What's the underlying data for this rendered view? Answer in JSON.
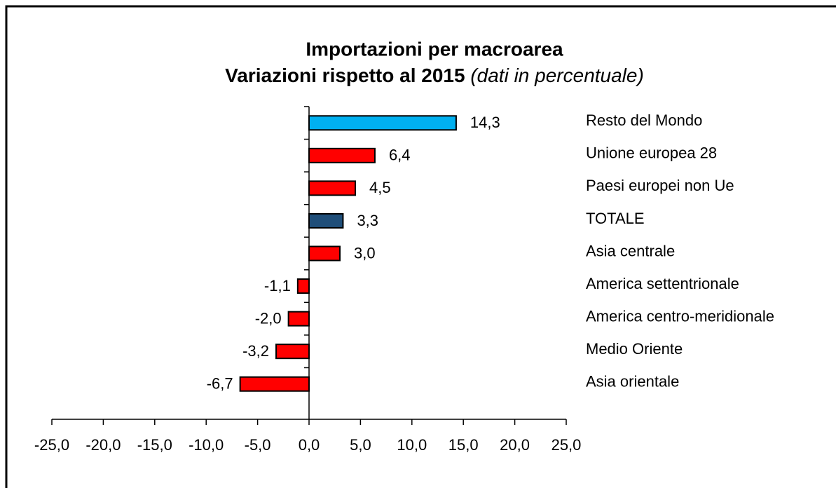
{
  "chart_data": {
    "type": "barh",
    "title": "Importazioni per macroarea",
    "subtitle": "Variazioni rispetto al 2015",
    "subtitle_note": "(dati in percentuale)",
    "categories": [
      "Resto del Mondo",
      "Unione europea 28",
      "Paesi europei non Ue",
      "TOTALE",
      "Asia centrale",
      "America settentrionale",
      "America centro-meridionale",
      "Medio Oriente",
      "Asia orientale"
    ],
    "values": [
      14.3,
      6.4,
      4.5,
      3.3,
      3.0,
      -1.1,
      -2.0,
      -3.2,
      -6.7
    ],
    "value_labels": [
      "14,3",
      "6,4",
      "4,5",
      "3,3",
      "3,0",
      "-1,1",
      "-2,0",
      "-3,2",
      "-6,7"
    ],
    "colors": [
      "#00b0f0",
      "#ff0000",
      "#ff0000",
      "#1f4e79",
      "#ff0000",
      "#ff0000",
      "#ff0000",
      "#ff0000",
      "#ff0000"
    ],
    "xlim": [
      -25,
      25
    ],
    "xticks": [
      {
        "value": -25,
        "label": "-25,0"
      },
      {
        "value": -20,
        "label": "-20,0"
      },
      {
        "value": -15,
        "label": "-15,0"
      },
      {
        "value": -10,
        "label": "-10,0"
      },
      {
        "value": -5,
        "label": "-5,0"
      },
      {
        "value": 0,
        "label": "0,0"
      },
      {
        "value": 5,
        "label": "5,0"
      },
      {
        "value": 10,
        "label": "10,0"
      },
      {
        "value": 15,
        "label": "15,0"
      },
      {
        "value": 20,
        "label": "20,0"
      },
      {
        "value": 25,
        "label": "25,0"
      }
    ]
  }
}
